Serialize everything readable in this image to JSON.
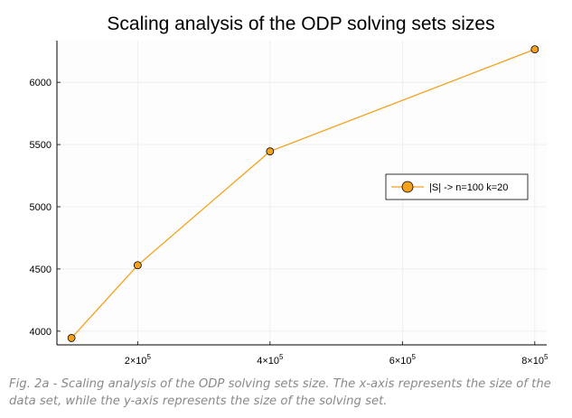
{
  "chart_data": {
    "type": "line",
    "title": "Scaling analysis of the ODP solving sets sizes",
    "xlabel": "",
    "ylabel": "",
    "x_ticks": [
      {
        "value": 200000,
        "base": "2×10",
        "exp": "5"
      },
      {
        "value": 400000,
        "base": "4×10",
        "exp": "5"
      },
      {
        "value": 600000,
        "base": "6×10",
        "exp": "5"
      },
      {
        "value": 800000,
        "base": "8×10",
        "exp": "5"
      }
    ],
    "y_ticks": [
      4000,
      4500,
      5000,
      5500,
      6000
    ],
    "xlim": [
      78000,
      818000
    ],
    "ylim": [
      3890,
      6335
    ],
    "grid": true,
    "legend_position": "right",
    "series": [
      {
        "name": "|S| -> n=100 k=20",
        "color": "#f5a11c",
        "x": [
          100000,
          200000,
          400000,
          800000
        ],
        "y": [
          3945,
          4530,
          5445,
          6265
        ]
      }
    ]
  },
  "caption": "Fig. 2a - Scaling analysis of the ODP solving sets size. The x-axis represents the size of the data set, while the y-axis represents the size of the solving set."
}
